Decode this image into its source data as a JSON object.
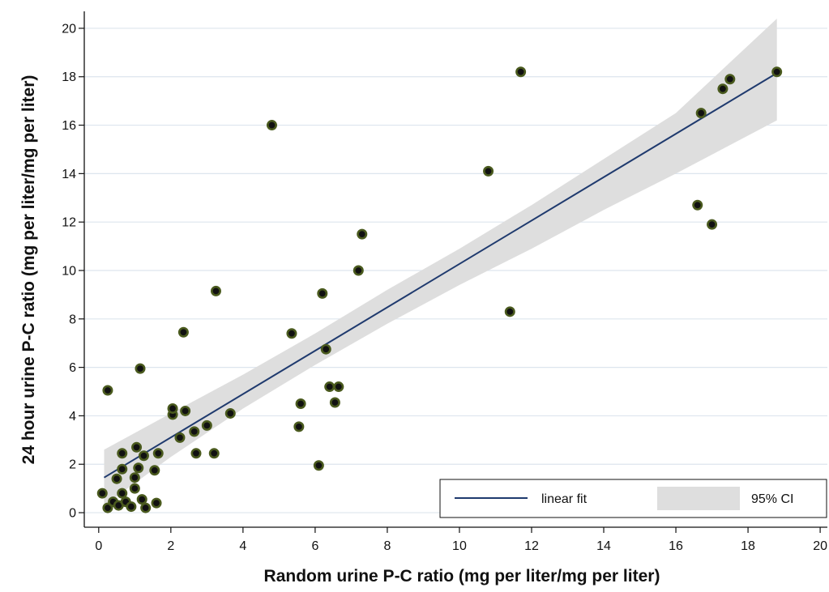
{
  "chart_data": {
    "type": "scatter",
    "title": "",
    "xlabel": "Random urine P-C ratio (mg per liter/mg per liter)",
    "ylabel": "24 hour urine P-C ratio (mg per liter/mg per liter)",
    "xlim": [
      -0.4,
      20.2
    ],
    "ylim": [
      -0.6,
      20.7
    ],
    "x_ticks": [
      0,
      2,
      4,
      6,
      8,
      10,
      12,
      14,
      16,
      18,
      20
    ],
    "y_ticks": [
      0,
      2,
      4,
      6,
      8,
      10,
      12,
      14,
      16,
      18,
      20
    ],
    "grid": "horizontal",
    "legend": {
      "position": "bottom-right",
      "entries": [
        "linear fit",
        "95% CI"
      ]
    },
    "colors": {
      "line": "#1f3a6e",
      "ci_band": "#dedede",
      "grid": "#dde5ee",
      "point_fill": "#111111",
      "point_edge": "#4a5a1e"
    },
    "fit": {
      "x": [
        0.15,
        18.8
      ],
      "y": [
        1.45,
        18.15
      ]
    },
    "ci_band": {
      "x": [
        0.15,
        2,
        4,
        6,
        8,
        10,
        12,
        14,
        16,
        18.8
      ],
      "lower": [
        0.3,
        2.3,
        4.3,
        6.1,
        7.8,
        9.4,
        10.9,
        12.5,
        14.0,
        16.2
      ],
      "upper": [
        2.6,
        4.1,
        5.7,
        7.4,
        9.2,
        10.9,
        12.7,
        14.6,
        16.5,
        20.4
      ]
    },
    "points": [
      {
        "x": 0.1,
        "y": 0.8
      },
      {
        "x": 0.25,
        "y": 0.2
      },
      {
        "x": 0.4,
        "y": 0.45
      },
      {
        "x": 0.5,
        "y": 1.4
      },
      {
        "x": 0.55,
        "y": 0.3
      },
      {
        "x": 0.65,
        "y": 0.8
      },
      {
        "x": 0.65,
        "y": 1.8
      },
      {
        "x": 0.65,
        "y": 2.45
      },
      {
        "x": 0.75,
        "y": 0.45
      },
      {
        "x": 0.9,
        "y": 0.25
      },
      {
        "x": 1.0,
        "y": 1.0
      },
      {
        "x": 1.0,
        "y": 1.45
      },
      {
        "x": 1.05,
        "y": 2.7
      },
      {
        "x": 1.1,
        "y": 1.85
      },
      {
        "x": 1.15,
        "y": 5.95
      },
      {
        "x": 1.2,
        "y": 0.55
      },
      {
        "x": 1.25,
        "y": 2.35
      },
      {
        "x": 1.3,
        "y": 0.2
      },
      {
        "x": 1.55,
        "y": 1.75
      },
      {
        "x": 1.6,
        "y": 0.4
      },
      {
        "x": 1.65,
        "y": 2.45
      },
      {
        "x": 0.25,
        "y": 5.05
      },
      {
        "x": 2.05,
        "y": 4.05
      },
      {
        "x": 2.05,
        "y": 4.3
      },
      {
        "x": 2.25,
        "y": 3.1
      },
      {
        "x": 2.35,
        "y": 7.45
      },
      {
        "x": 2.4,
        "y": 4.2
      },
      {
        "x": 2.65,
        "y": 3.35
      },
      {
        "x": 2.7,
        "y": 2.45
      },
      {
        "x": 3.0,
        "y": 3.6
      },
      {
        "x": 3.2,
        "y": 2.45
      },
      {
        "x": 3.25,
        "y": 9.15
      },
      {
        "x": 3.65,
        "y": 4.1
      },
      {
        "x": 4.8,
        "y": 16.0
      },
      {
        "x": 5.35,
        "y": 7.4
      },
      {
        "x": 5.55,
        "y": 3.55
      },
      {
        "x": 5.6,
        "y": 4.5
      },
      {
        "x": 6.1,
        "y": 1.95
      },
      {
        "x": 6.2,
        "y": 9.05
      },
      {
        "x": 6.3,
        "y": 6.75
      },
      {
        "x": 6.4,
        "y": 5.2
      },
      {
        "x": 6.55,
        "y": 4.55
      },
      {
        "x": 6.65,
        "y": 5.2
      },
      {
        "x": 7.2,
        "y": 10.0
      },
      {
        "x": 7.3,
        "y": 11.5
      },
      {
        "x": 10.8,
        "y": 14.1
      },
      {
        "x": 11.4,
        "y": 8.3
      },
      {
        "x": 11.7,
        "y": 18.2
      },
      {
        "x": 16.6,
        "y": 12.7
      },
      {
        "x": 16.7,
        "y": 16.5
      },
      {
        "x": 17.0,
        "y": 11.9
      },
      {
        "x": 17.3,
        "y": 17.5
      },
      {
        "x": 17.5,
        "y": 17.9
      },
      {
        "x": 18.8,
        "y": 18.2
      }
    ]
  }
}
